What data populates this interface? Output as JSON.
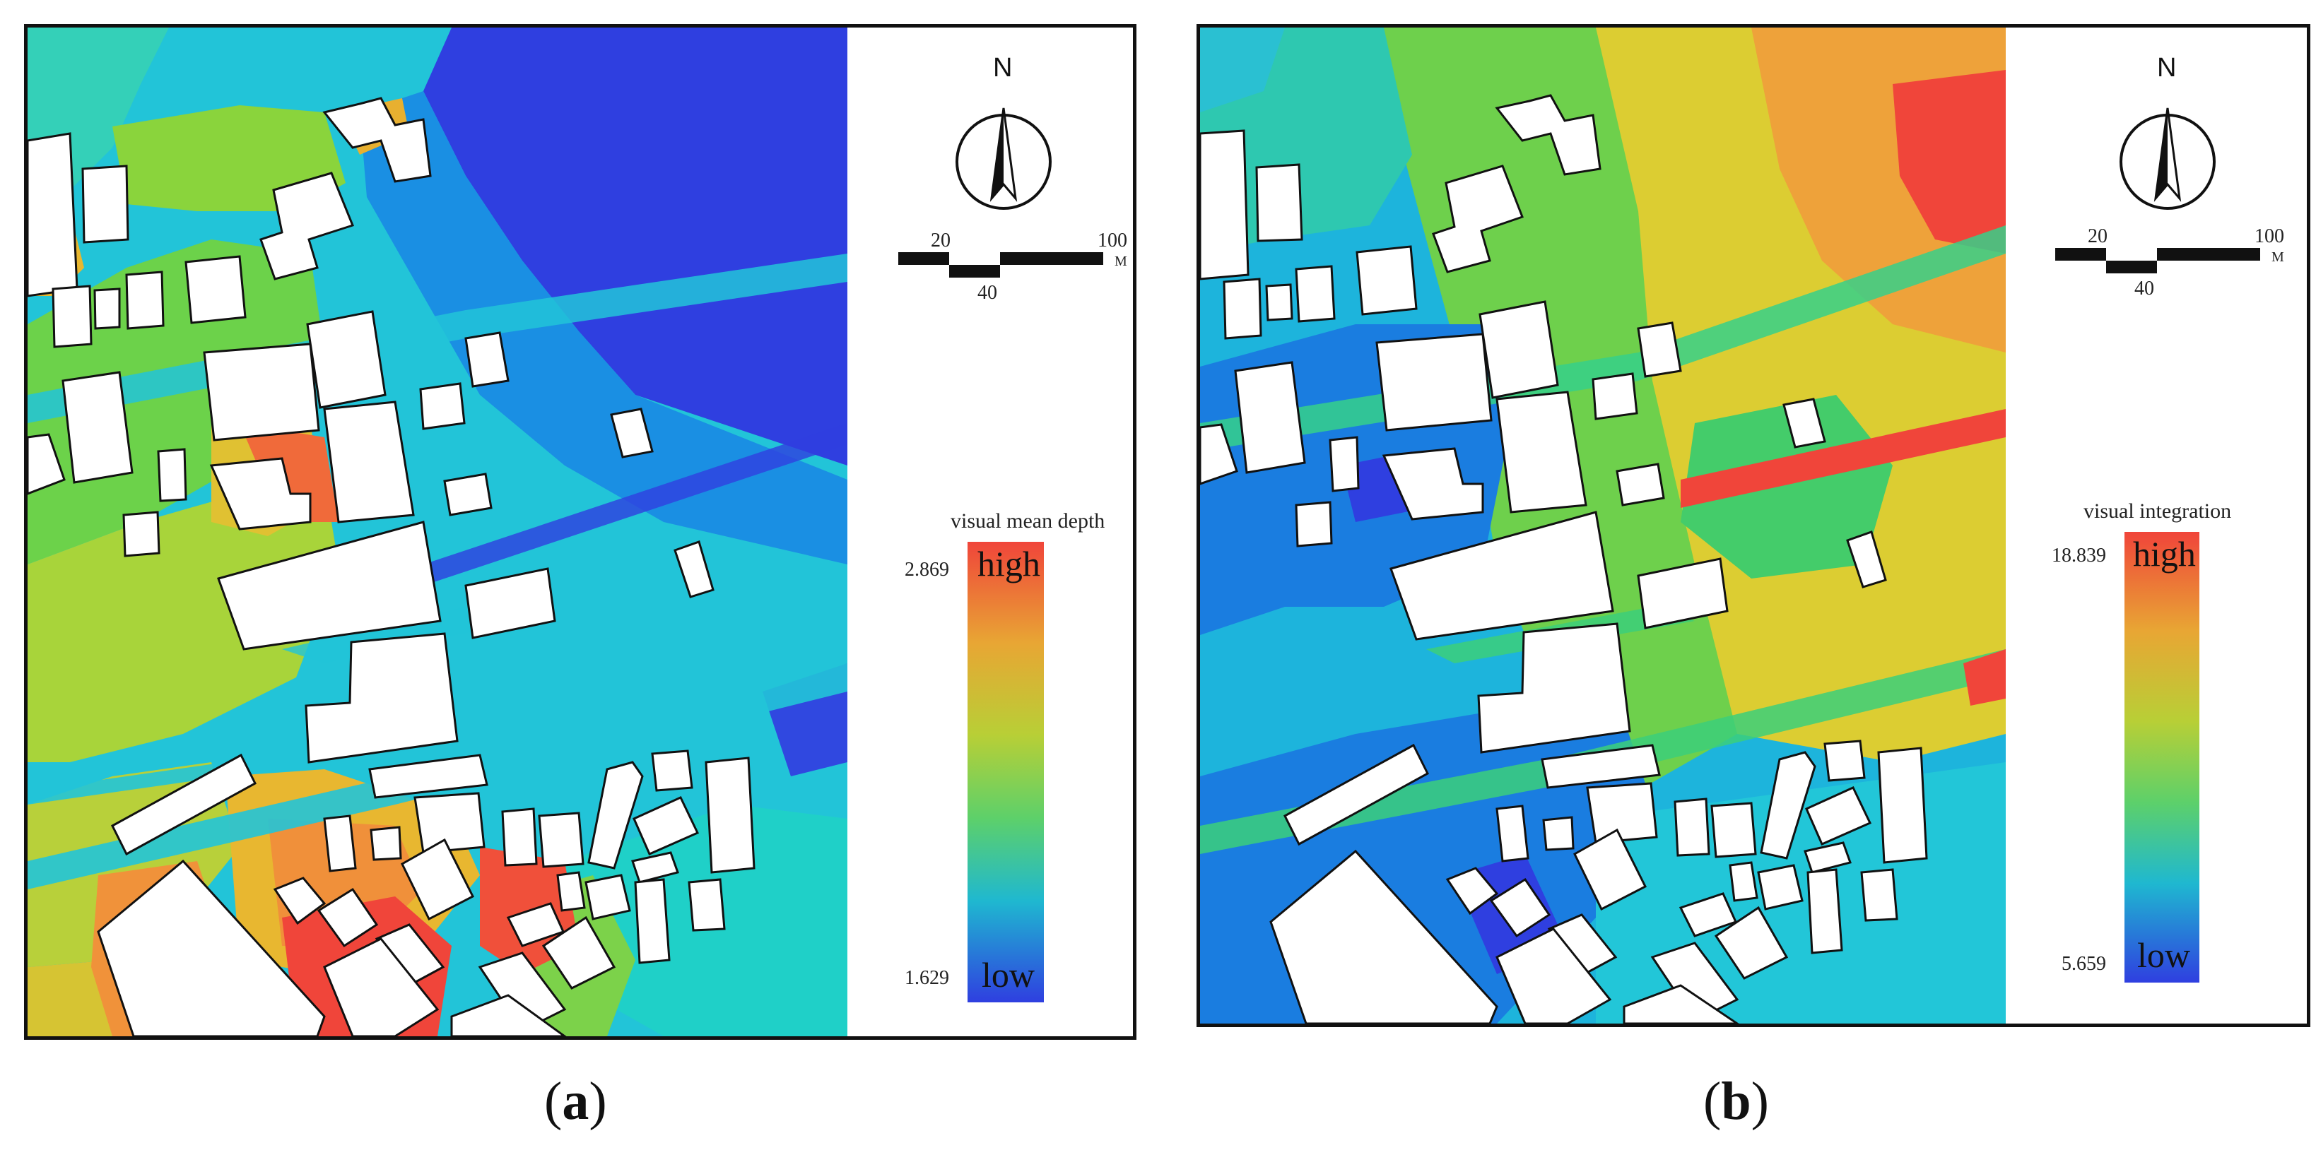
{
  "panels": [
    {
      "id": "a",
      "caption_open": "(",
      "caption_letter": "a",
      "caption_close": ")",
      "north_label": "N",
      "scale": {
        "label_left": "20",
        "label_mid": "40",
        "label_right": "100",
        "unit": "M"
      },
      "legend": {
        "title": "visual mean depth",
        "max_value": "2.869",
        "min_value": "1.629",
        "high_label": "high",
        "low_label": "low"
      },
      "colors": {
        "low": "#2f3fe0",
        "high": "#f0453a"
      }
    },
    {
      "id": "b",
      "caption_open": "(",
      "caption_letter": "b",
      "caption_close": ")",
      "north_label": "N",
      "scale": {
        "label_left": "20",
        "label_mid": "40",
        "label_right": "100",
        "unit": "M"
      },
      "legend": {
        "title": "visual integration",
        "max_value": "18.839",
        "min_value": "5.659",
        "high_label": "high",
        "low_label": "low"
      },
      "colors": {
        "low": "#2f3fe0",
        "high": "#f0453a"
      }
    }
  ]
}
